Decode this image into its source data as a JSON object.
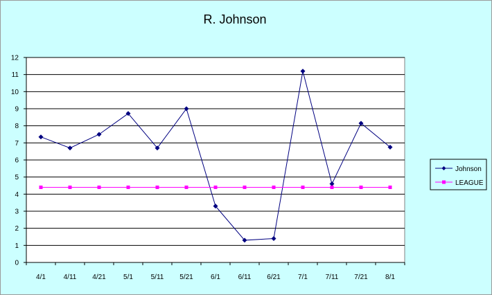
{
  "chart_data": {
    "type": "line",
    "title": "R. Johnson",
    "xlabel": "",
    "ylabel": "",
    "categories": [
      "4/1",
      "4/11",
      "4/21",
      "5/1",
      "5/11",
      "5/21",
      "6/1",
      "6/11",
      "6/21",
      "7/1",
      "7/11",
      "7/21",
      "8/1"
    ],
    "ylim": [
      0,
      12
    ],
    "yticks": [
      0,
      1,
      2,
      3,
      4,
      5,
      6,
      7,
      8,
      9,
      10,
      11,
      12
    ],
    "grid": "horizontal",
    "legend_position": "right",
    "plot_background": "#ffffff",
    "chart_background": "#ccffff",
    "series": [
      {
        "name": "Johnson",
        "color": "#000080",
        "marker": "diamond",
        "values": [
          7.35,
          6.7,
          7.5,
          8.72,
          6.7,
          9.0,
          3.3,
          1.3,
          1.4,
          11.2,
          4.6,
          8.15,
          6.75
        ]
      },
      {
        "name": "LEAGUE",
        "color": "#ff00ff",
        "marker": "square",
        "values": [
          4.4,
          4.4,
          4.4,
          4.4,
          4.4,
          4.4,
          4.4,
          4.4,
          4.4,
          4.4,
          4.4,
          4.4,
          4.4
        ]
      }
    ]
  }
}
